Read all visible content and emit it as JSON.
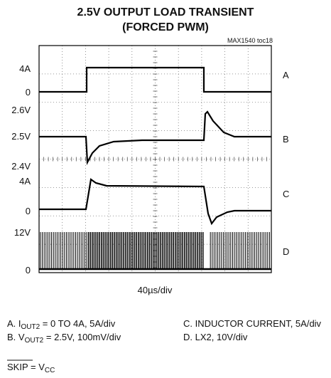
{
  "title": [
    "2.5V OUTPUT LOAD TRANSIENT",
    "(FORCED PWM)"
  ],
  "figure_id": "MAX1540 toc18",
  "left_labels": [
    "4A",
    "0",
    "2.6V",
    "2.5V",
    "2.4V",
    "4A",
    "0",
    "12V",
    "0"
  ],
  "channel_labels": [
    "A",
    "B",
    "C",
    "D"
  ],
  "timebase": "40µs/div",
  "legend": [
    {
      "prefix": "A. I",
      "sub": "OUT2",
      "text": " = 0 TO 4A, 5A/div"
    },
    {
      "prefix": "B. V",
      "sub": "OUT2",
      "text": " = 2.5V, 100mV/div"
    },
    {
      "text": "C. INDUCTOR CURRENT, 5A/div"
    },
    {
      "text": "D. LX2, 10V/div"
    }
  ],
  "footnote": {
    "skip": "SKIP",
    "text": " = V",
    "sub": "CC"
  }
}
